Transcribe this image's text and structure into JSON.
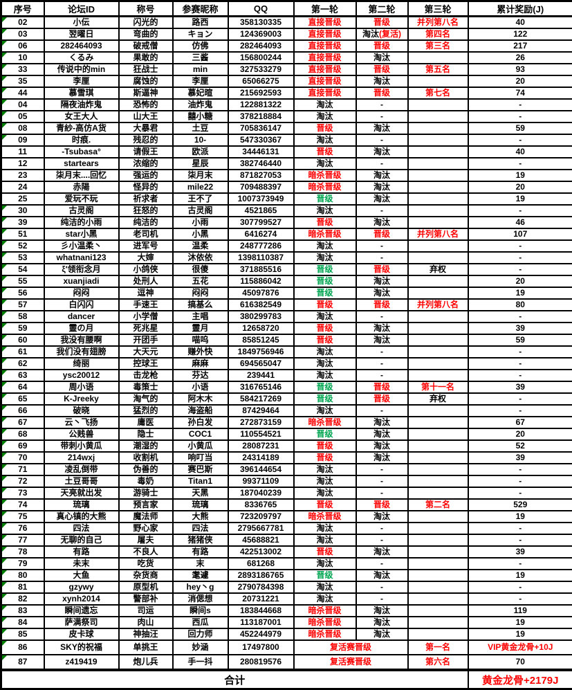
{
  "colors": {
    "red": "#FF0000",
    "green": "#00A651",
    "flag_green": "#007F00",
    "border": "#000000",
    "background": "#FFFFFF"
  },
  "table": {
    "columns": [
      "序号",
      "论坛ID",
      "称号",
      "参赛昵称",
      "QQ",
      "第一轮",
      "第二轮",
      "第三轮",
      "累计奖励(J)"
    ],
    "row_fields": [
      "no",
      "forum_id",
      "title",
      "nickname",
      "qq",
      "round1",
      "round1_color",
      "round2",
      "round2_color",
      "round3",
      "round3_color",
      "reward",
      "reward_color",
      "has_flag",
      "rounds_merged"
    ],
    "rows": [
      [
        "02",
        "小伝",
        "闪光的",
        "路西",
        "358130335",
        "直接晋级",
        "red",
        "晋级",
        "red",
        "并列第八名",
        "red",
        "40",
        "black",
        true,
        false
      ],
      [
        "03",
        "翌曜日",
        "弯曲的",
        "キョン",
        "124369003",
        "直接晋级",
        "red",
        "淘汰(复活)",
        "mixed",
        "第四名",
        "red",
        "122",
        "black",
        true,
        false
      ],
      [
        "06",
        "282464093",
        "破戒僧",
        "仿佛",
        "282464093",
        "直接晋级",
        "red",
        "晋级",
        "red",
        "第三名",
        "red",
        "217",
        "black",
        true,
        false
      ],
      [
        "10",
        "くるみ",
        "果敢的",
        "三酱",
        "156800244",
        "直接晋级",
        "red",
        "淘汰",
        "black",
        "",
        "black",
        "26",
        "black",
        true,
        false
      ],
      [
        "33",
        "传说中的min",
        "狂战士",
        "min",
        "327533279",
        "直接晋级",
        "red",
        "晋级",
        "red",
        "第五名",
        "red",
        "93",
        "black",
        true,
        false
      ],
      [
        "35",
        "李厘",
        "腐蚀的",
        "李厘",
        "65066275",
        "直接晋级",
        "red",
        "淘汰",
        "black",
        "",
        "black",
        "20",
        "black",
        true,
        false
      ],
      [
        "44",
        "慕雪琪",
        "斯逼神",
        "慕妃暄",
        "215692593",
        "直接晋级",
        "red",
        "晋级",
        "red",
        "第七名",
        "red",
        "74",
        "black",
        true,
        false
      ],
      [
        "04",
        "隔夜油炸鬼",
        "恐怖的",
        "油炸鬼",
        "122881322",
        "淘汰",
        "black",
        "-",
        "black",
        "",
        "black",
        "-",
        "black",
        true,
        false
      ],
      [
        "05",
        "女王大人",
        "山大王",
        "囍小糖",
        "378218884",
        "淘汰",
        "black",
        "-",
        "black",
        "",
        "black",
        "-",
        "black",
        true,
        false
      ],
      [
        "08",
        "青紗-高仿A货",
        "大暴君",
        "土豆",
        "705836147",
        "晋级",
        "red",
        "淘汰",
        "black",
        "",
        "black",
        "59",
        "black",
        true,
        false
      ],
      [
        "09",
        "时痕.",
        "残忍的",
        "10-",
        "547330367",
        "淘汰",
        "black",
        "-",
        "black",
        "",
        "black",
        "-",
        "black",
        true,
        false
      ],
      [
        "11",
        "-Tsubasa°",
        "请假王",
        "欧派",
        "34446131",
        "晋级",
        "red",
        "淘汰",
        "black",
        "",
        "black",
        "40",
        "black",
        false,
        false
      ],
      [
        "12",
        "startears",
        "浓缩的",
        "星辰",
        "382746440",
        "淘汰",
        "black",
        "-",
        "black",
        "",
        "black",
        "-",
        "black",
        false,
        false
      ],
      [
        "23",
        "柒月末....回忆",
        "强运的",
        "柒月末",
        "871827053",
        "暗杀晋级",
        "red",
        "淘汰",
        "black",
        "",
        "black",
        "19",
        "black",
        false,
        false
      ],
      [
        "24",
        "赤陽",
        "怪异的",
        "mile22",
        "709488397",
        "暗杀晋级",
        "red",
        "淘汰",
        "black",
        "",
        "black",
        "20",
        "black",
        false,
        false
      ],
      [
        "25",
        "爱玩不玩",
        "祈求者",
        "王不了",
        "1007373949",
        "晋级",
        "green",
        "淘汰",
        "black",
        "",
        "black",
        "19",
        "black",
        false,
        false
      ],
      [
        "30",
        "古灵阁",
        "狂怒的",
        "古灵阁",
        "4521865",
        "淘汰",
        "black",
        "-",
        "black",
        "",
        "black",
        "-",
        "black",
        true,
        false
      ],
      [
        "39",
        "纯洁的小雨",
        "纯洁的",
        "小雨",
        "307799527",
        "晋级",
        "red",
        "淘汰",
        "black",
        "",
        "black",
        "46",
        "black",
        true,
        false
      ],
      [
        "51",
        "star小黑",
        "老司机",
        "小黑",
        "6416274",
        "暗杀晋级",
        "red",
        "晋级",
        "red",
        "并列第八名",
        "red",
        "107",
        "black",
        true,
        false
      ],
      [
        "52",
        "彡小温柔丶",
        "进军号",
        "温柔",
        "248777286",
        "淘汰",
        "black",
        "-",
        "black",
        "",
        "black",
        "-",
        "black",
        true,
        false
      ],
      [
        "53",
        "whatnani123",
        "大婶",
        "沐依依",
        "1398110387",
        "淘汰",
        "black",
        "-",
        "black",
        "",
        "black",
        "-",
        "black",
        true,
        false
      ],
      [
        "54",
        "ξ′领衔念月",
        "小鸽侠",
        "很傻",
        "371885516",
        "晋级",
        "green",
        "晋级",
        "red",
        "弃权",
        "black",
        "-",
        "black",
        true,
        false
      ],
      [
        "55",
        "xuanjiadi",
        "处刑人",
        "五花",
        "115886042",
        "晋级",
        "green",
        "淘汰",
        "black",
        "",
        "black",
        "20",
        "black",
        true,
        false
      ],
      [
        "56",
        "闷闷",
        "逗神",
        "闷闷",
        "45097876",
        "晋级",
        "green",
        "淘汰",
        "black",
        "",
        "black",
        "19",
        "black",
        true,
        false
      ],
      [
        "57",
        "白闪闪",
        "手速王",
        "搞基么",
        "616382549",
        "晋级",
        "red",
        "晋级",
        "red",
        "并列第八名",
        "red",
        "80",
        "black",
        true,
        false
      ],
      [
        "58",
        "dancer",
        "小学僧",
        "主唱",
        "380299783",
        "淘汰",
        "black",
        "-",
        "black",
        "",
        "black",
        "-",
        "black",
        true,
        false
      ],
      [
        "59",
        "靈の月",
        "死兆星",
        "靈月",
        "12658720",
        "晋级",
        "red",
        "淘汰",
        "black",
        "",
        "black",
        "39",
        "black",
        true,
        false
      ],
      [
        "60",
        "我没有腰啊",
        "开团手",
        "喵呜",
        "85851245",
        "晋级",
        "red",
        "淘汰",
        "black",
        "",
        "black",
        "59",
        "black",
        true,
        false
      ],
      [
        "61",
        "我们没有翅膀",
        "大天元",
        "赚外快",
        "1849756946",
        "淘汰",
        "black",
        "-",
        "black",
        "",
        "black",
        "-",
        "black",
        true,
        false
      ],
      [
        "62",
        "绮丽",
        "控球王",
        "麻麻",
        "694565047",
        "淘汰",
        "black",
        "-",
        "black",
        "",
        "black",
        "-",
        "black",
        true,
        false
      ],
      [
        "63",
        "ysc20012",
        "击龙枪",
        "芬达",
        "239441",
        "淘汰",
        "black",
        "-",
        "black",
        "",
        "black",
        "-",
        "black",
        true,
        false
      ],
      [
        "64",
        "周小语",
        "毒策士",
        "小语",
        "316765146",
        "晋级",
        "green",
        "晋级",
        "red",
        "第十一名",
        "red",
        "39",
        "black",
        true,
        false
      ],
      [
        "65",
        "K-Jreeky",
        "淘气的",
        "阿木木",
        "584217269",
        "晋级",
        "green",
        "晋级",
        "red",
        "弃权",
        "black",
        "-",
        "black",
        true,
        false
      ],
      [
        "66",
        "破晓",
        "猛烈的",
        "海盗船",
        "87429464",
        "淘汰",
        "black",
        "-",
        "black",
        "",
        "black",
        "-",
        "black",
        true,
        false
      ],
      [
        "67",
        "云丶飞扬",
        "庸医",
        "孙白发",
        "272873159",
        "暗杀晋级",
        "red",
        "淘汰",
        "black",
        "",
        "black",
        "67",
        "black",
        true,
        false
      ],
      [
        "68",
        "公贱兽",
        "隐士",
        "COC1",
        "110554521",
        "晋级",
        "green",
        "淘汰",
        "black",
        "",
        "black",
        "20",
        "black",
        true,
        false
      ],
      [
        "69",
        "带刺小黄瓜",
        "潮湿的",
        "小黄瓜",
        "28087231",
        "晋级",
        "red",
        "淘汰",
        "black",
        "",
        "black",
        "52",
        "black",
        true,
        false
      ],
      [
        "70",
        "214wxj",
        "收割机",
        "响叮当",
        "24314189",
        "晋级",
        "red",
        "淘汰",
        "black",
        "",
        "black",
        "39",
        "black",
        true,
        false
      ],
      [
        "71",
        "凌乱倒带",
        "伪善的",
        "赛巴斯",
        "396144654",
        "淘汰",
        "black",
        "-",
        "black",
        "",
        "black",
        "-",
        "black",
        true,
        false
      ],
      [
        "72",
        "土豆哥哥",
        "毒奶",
        "Titan1",
        "99371109",
        "淘汰",
        "black",
        "-",
        "black",
        "",
        "black",
        "-",
        "black",
        true,
        false
      ],
      [
        "73",
        "天亮就出发",
        "游骑士",
        "天黑",
        "187040239",
        "淘汰",
        "black",
        "-",
        "black",
        "",
        "black",
        "-",
        "black",
        true,
        false
      ],
      [
        "74",
        "琉璃",
        "预言家",
        "琉璃",
        "8336765",
        "晋级",
        "red",
        "晋级",
        "red",
        "第二名",
        "red",
        "529",
        "black",
        true,
        false
      ],
      [
        "75",
        "真心镇的大熊",
        "魔法师",
        "大熊",
        "723209797",
        "暗杀晋级",
        "red",
        "淘汰",
        "black",
        "",
        "black",
        "19",
        "black",
        true,
        false
      ],
      [
        "76",
        "四法",
        "野心家",
        "四法",
        "2795667781",
        "淘汰",
        "black",
        "-",
        "black",
        "",
        "black",
        "-",
        "black",
        true,
        false
      ],
      [
        "77",
        "无聊的自己",
        "屠夫",
        "猪猪侠",
        "45688821",
        "淘汰",
        "black",
        "-",
        "black",
        "",
        "black",
        "-",
        "black",
        true,
        false
      ],
      [
        "78",
        "有路",
        "不良人",
        "有路",
        "422513002",
        "晋级",
        "red",
        "淘汰",
        "black",
        "",
        "black",
        "39",
        "black",
        true,
        false
      ],
      [
        "79",
        "未末",
        "吃货",
        "末",
        "681268",
        "淘汰",
        "black",
        "-",
        "black",
        "",
        "black",
        "-",
        "black",
        true,
        false
      ],
      [
        "80",
        "大鱼",
        "杂货商",
        "耄遽",
        "2893186765",
        "晋级",
        "green",
        "淘汰",
        "black",
        "",
        "black",
        "19",
        "black",
        true,
        false
      ],
      [
        "81",
        "gzywy",
        "原型机",
        "hey丶g",
        "2790784398",
        "淘汰",
        "black",
        "-",
        "black",
        "",
        "black",
        "-",
        "black",
        true,
        false
      ],
      [
        "82",
        "xynh2014",
        "警部补",
        "消偲想",
        "20731221",
        "淘汰",
        "black",
        "-",
        "black",
        "",
        "black",
        "-",
        "black",
        true,
        false
      ],
      [
        "83",
        "瞬间遗忘",
        "司运",
        "瞬间s",
        "183844668",
        "暗杀晋级",
        "red",
        "淘汰",
        "black",
        "",
        "black",
        "119",
        "black",
        true,
        false
      ],
      [
        "84",
        "萨满祭司",
        "肉山",
        "西瓜",
        "113187001",
        "暗杀晋级",
        "red",
        "淘汰",
        "black",
        "",
        "black",
        "19",
        "black",
        true,
        false
      ],
      [
        "85",
        "皮卡球",
        "神抽汪",
        "回力师",
        "452244979",
        "暗杀晋级",
        "red",
        "淘汰",
        "black",
        "",
        "black",
        "19",
        "black",
        true,
        false
      ],
      [
        "86",
        "SKY的祝福",
        "单挑王",
        "妙涵",
        "17497800",
        "复活赛晋级",
        "red",
        "",
        "black",
        "第一名",
        "red",
        "VIP黄金龙骨+10J",
        "red",
        true,
        true
      ],
      [
        "87",
        "z419419",
        "炮儿兵",
        "手一抖",
        "280819576",
        "复活赛晋级",
        "red",
        "",
        "black",
        "第六名",
        "red",
        "70",
        "black",
        true,
        true
      ]
    ]
  },
  "footer": {
    "label": "合计",
    "reward": "黄金龙骨+2179J",
    "reward_color": "red"
  }
}
